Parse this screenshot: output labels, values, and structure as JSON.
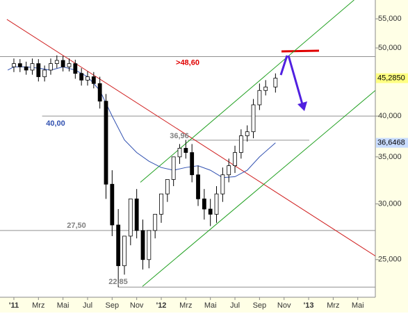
{
  "chart_data": {
    "type": "candlestick",
    "log_scale": true,
    "xlim": [
      -1.13,
      29.43
    ],
    "ylim": [
      22.1,
      58.5
    ],
    "xticks": [
      {
        "value": 0,
        "label": "'11"
      },
      {
        "value": 2,
        "label": "Mrz"
      },
      {
        "value": 4,
        "label": "Mai"
      },
      {
        "value": 6,
        "label": "Jul"
      },
      {
        "value": 8,
        "label": "Sep"
      },
      {
        "value": 10,
        "label": "Nov"
      },
      {
        "value": 12,
        "label": "'12"
      },
      {
        "value": 14,
        "label": "Mrz"
      },
      {
        "value": 16,
        "label": "Mai"
      },
      {
        "value": 18,
        "label": "Jul"
      },
      {
        "value": 20,
        "label": "Sep"
      },
      {
        "value": 22,
        "label": "Nov"
      },
      {
        "value": 24,
        "label": "'13"
      },
      {
        "value": 26,
        "label": "Mrz"
      },
      {
        "value": 28,
        "label": "Mai"
      }
    ],
    "yticks": [
      {
        "value": 25,
        "label": "25,000"
      },
      {
        "value": 30,
        "label": "30,000"
      },
      {
        "value": 35,
        "label": "35,000"
      },
      {
        "value": 40,
        "label": "40,000"
      },
      {
        "value": 50,
        "label": "50,000"
      },
      {
        "value": 55,
        "label": "55,000"
      }
    ],
    "candles": {
      "x": [
        0,
        0.5,
        1,
        1.5,
        2,
        2.5,
        3,
        3.5,
        4,
        4.5,
        5,
        5.5,
        6,
        6.5,
        7,
        7.5,
        8,
        8.5,
        9,
        9.5,
        10,
        10.5,
        11,
        11.5,
        12,
        12.5,
        13,
        13.5,
        14,
        14.5,
        15,
        15.5,
        16,
        16.5,
        17,
        17.5,
        18,
        18.5,
        19,
        19.5,
        20,
        20.5,
        21.3
      ],
      "open": [
        47.0,
        47.5,
        47.0,
        46.5,
        47.5,
        45.5,
        46.5,
        47.5,
        48.0,
        47.0,
        47.5,
        46.0,
        45.0,
        45.5,
        44.5,
        42.0,
        32.0,
        28.0,
        24.5,
        27.0,
        30.5,
        27.5,
        25.0,
        27.5,
        29.0,
        31.0,
        32.5,
        35.0,
        36.0,
        35.5,
        33.0,
        30.5,
        29.5,
        29.0,
        31.0,
        33.0,
        34.0,
        35.5,
        37.5,
        38.0,
        41.5,
        43.5,
        44.0
      ],
      "high": [
        48.3,
        48.2,
        47.8,
        48.3,
        48.2,
        47.2,
        48.3,
        48.8,
        48.7,
        48.3,
        48.1,
        46.8,
        46.3,
        46.2,
        45.5,
        43.0,
        33.5,
        29.5,
        26.0,
        28.5,
        31.5,
        28.5,
        26.5,
        28.5,
        30.0,
        32.5,
        34.0,
        36.5,
        37.0,
        36.5,
        34.0,
        31.5,
        30.5,
        31.8,
        33.8,
        34.8,
        36.3,
        38.3,
        38.8,
        42.3,
        44.5,
        45.0,
        46.0
      ],
      "low": [
        46.2,
        46.2,
        45.8,
        45.8,
        44.8,
        44.8,
        45.8,
        46.8,
        46.3,
        46.3,
        45.2,
        44.2,
        44.2,
        43.8,
        41.0,
        30.5,
        27.0,
        22.85,
        23.8,
        26.2,
        26.8,
        24.2,
        24.3,
        26.8,
        28.2,
        30.2,
        31.8,
        34.2,
        34.8,
        32.2,
        29.8,
        28.5,
        27.9,
        28.2,
        30.2,
        32.2,
        33.2,
        34.8,
        36.8,
        37.2,
        40.8,
        42.8,
        43.2
      ],
      "close": [
        47.5,
        47.0,
        46.5,
        47.5,
        45.5,
        46.5,
        47.5,
        48.0,
        47.0,
        47.5,
        46.0,
        45.0,
        45.5,
        44.5,
        42.0,
        32.0,
        28.0,
        24.5,
        27.0,
        30.5,
        27.5,
        25.0,
        27.5,
        29.0,
        31.0,
        32.5,
        35.0,
        36.0,
        35.5,
        33.0,
        30.5,
        29.5,
        29.0,
        31.0,
        33.0,
        34.0,
        35.5,
        37.5,
        38.0,
        41.5,
        43.5,
        44.0,
        45.285
      ]
    },
    "moving_average": {
      "color": "#3050b0",
      "x": [
        -0.5,
        0,
        1,
        2,
        3,
        4,
        5,
        6,
        7,
        8,
        9,
        10,
        11,
        12,
        13,
        14,
        15,
        16,
        17,
        18,
        19,
        20,
        21.3
      ],
      "values": [
        46.5,
        47,
        47,
        46.8,
        46.5,
        47,
        46.5,
        45.5,
        43.5,
        40,
        37,
        35.5,
        34.5,
        33.8,
        33.5,
        33.8,
        34,
        33.5,
        32.7,
        32.8,
        33.5,
        35,
        36.6468
      ]
    },
    "trendlines": [
      {
        "color": "#d02020",
        "x": [
          -0.57,
          29.43
        ],
        "y": [
          54.9,
          25.3
        ]
      },
      {
        "color": "#20a020",
        "x": [
          10.3,
          27.7
        ],
        "y": [
          32.2,
          58.5
        ]
      },
      {
        "color": "#20a020",
        "x": [
          10.47,
          29.43
        ],
        "y": [
          22.9,
          43.5
        ]
      }
    ],
    "levels": [
      {
        "value": 48.6,
        "label": ">48,60",
        "color": "#e00000"
      },
      {
        "value": 40.0,
        "label": "40,00",
        "color": "#3050b0",
        "x": [
          2.3,
          29.43
        ]
      },
      {
        "value": 36.96,
        "label": "36,96",
        "color": "#808080",
        "x": [
          14.15,
          24.05
        ]
      },
      {
        "value": 27.5,
        "label": "27,50",
        "color": "#808080"
      },
      {
        "value": 22.85,
        "label": "22,85",
        "color": "#808080",
        "x": [
          8.5,
          29.43
        ]
      }
    ],
    "markers": [
      {
        "value": 45.285,
        "label": "45,2850",
        "color": "#ffff80"
      },
      {
        "value": 36.6468,
        "label": "36,6468",
        "color": "#c8dcff"
      }
    ]
  }
}
